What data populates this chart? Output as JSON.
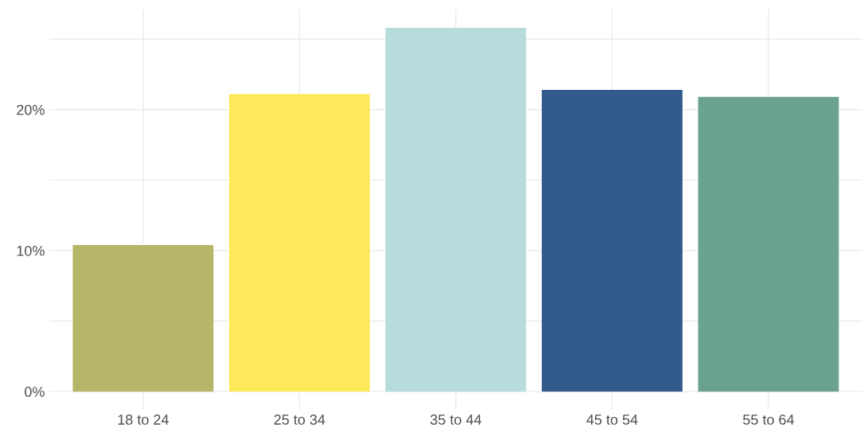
{
  "chart_data": {
    "type": "bar",
    "categories": [
      "18 to 24",
      "25 to 34",
      "35 to 44",
      "45 to 54",
      "55 to 64"
    ],
    "values": [
      10.4,
      21.1,
      25.8,
      21.4,
      20.9
    ],
    "colors": [
      "#b5b667",
      "#fee95a",
      "#b7dcdc",
      "#325b8c",
      "#6ba28e"
    ],
    "ylim": [
      -1.29,
      27.1
    ],
    "yticks": [
      {
        "value": 0,
        "label": "0%"
      },
      {
        "value": 5,
        "label": null
      },
      {
        "value": 10,
        "label": "10%"
      },
      {
        "value": 15,
        "label": null
      },
      {
        "value": 20,
        "label": "20%"
      },
      {
        "value": 25,
        "label": null
      }
    ],
    "grid": true
  }
}
